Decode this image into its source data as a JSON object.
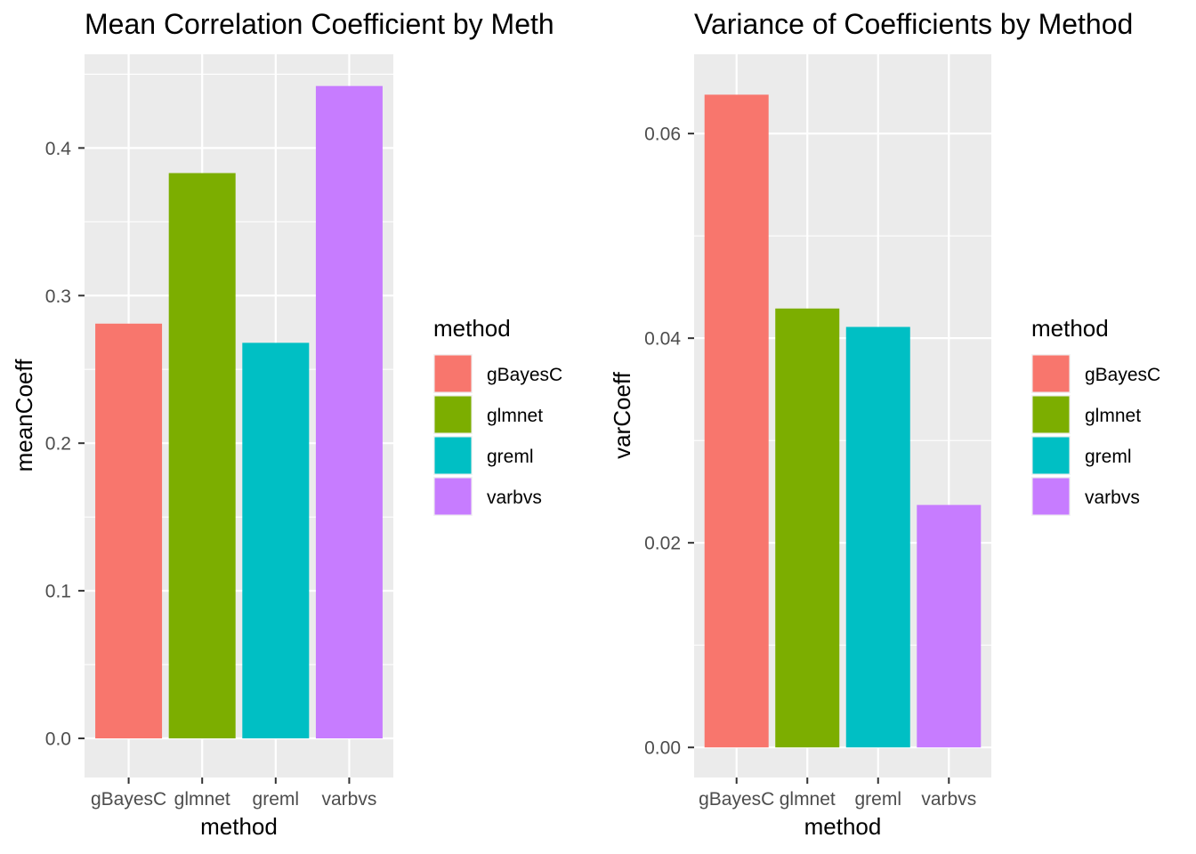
{
  "chart_data": [
    {
      "type": "bar",
      "title": "Mean Correlation Coefficient by Meth",
      "xlabel": "method",
      "ylabel": "meanCoeff",
      "categories": [
        "gBayesC",
        "glmnet",
        "greml",
        "varbvs"
      ],
      "values": [
        0.281,
        0.383,
        0.268,
        0.442
      ],
      "ylim": [
        -0.0265,
        0.4635
      ],
      "yticks": [
        0.0,
        0.1,
        0.2,
        0.3,
        0.4
      ],
      "ytick_labels": [
        "0.0",
        "0.1",
        "0.2",
        "0.3",
        "0.4"
      ],
      "grid": true,
      "legend": {
        "title": "method",
        "placement": "right",
        "items": [
          "gBayesC",
          "glmnet",
          "greml",
          "varbvs"
        ]
      }
    },
    {
      "type": "bar",
      "title": "Variance of Coefficients by Method",
      "xlabel": "method",
      "ylabel": "varCoeff",
      "categories": [
        "gBayesC",
        "glmnet",
        "greml",
        "varbvs"
      ],
      "values": [
        0.0638,
        0.0429,
        0.0411,
        0.0237
      ],
      "ylim": [
        -0.00294,
        0.06775
      ],
      "yticks": [
        0.0,
        0.02,
        0.04,
        0.06
      ],
      "ytick_labels": [
        "0.00",
        "0.02",
        "0.04",
        "0.06"
      ],
      "grid": true,
      "legend": {
        "title": "method",
        "placement": "right",
        "items": [
          "gBayesC",
          "glmnet",
          "greml",
          "varbvs"
        ]
      }
    }
  ],
  "colors": {
    "gBayesC": "#F8766D",
    "glmnet": "#7CAE00",
    "greml": "#00BFC4",
    "varbvs": "#C77CFF",
    "panel_bg": "#EBEBEB",
    "grid": "#FFFFFF"
  }
}
